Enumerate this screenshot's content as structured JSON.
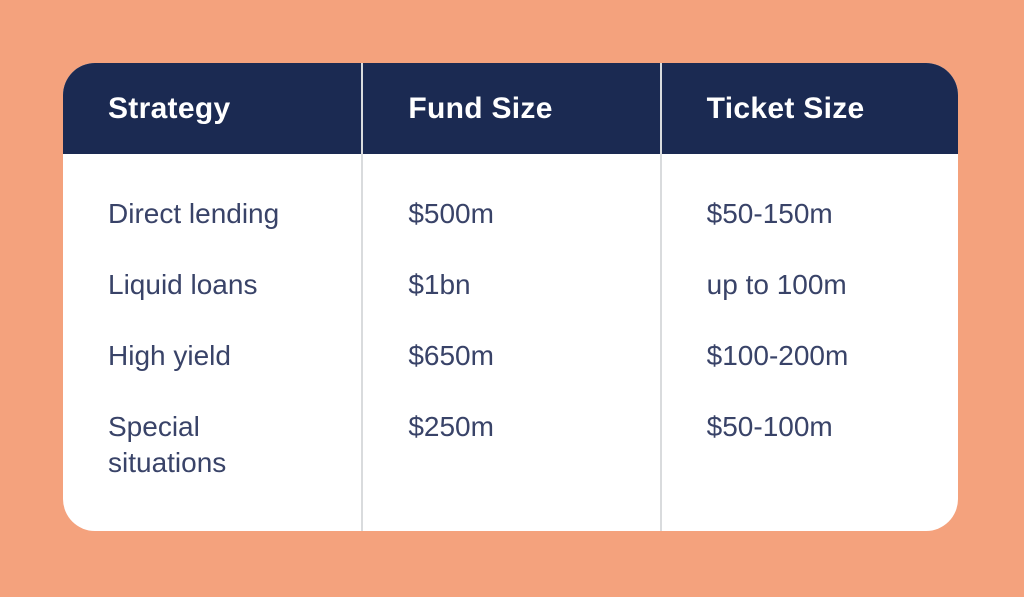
{
  "chart_data": {
    "type": "table",
    "columns": [
      "Strategy",
      "Fund Size",
      "Ticket Size"
    ],
    "rows": [
      [
        "Direct lending",
        "$500m",
        "$50-150m"
      ],
      [
        "Liquid loans",
        "$1bn",
        "up to 100m"
      ],
      [
        "High yield",
        "$650m",
        "$100-200m"
      ],
      [
        "Special situations",
        "$250m",
        "$50-100m"
      ]
    ]
  },
  "colors": {
    "page_background": "#F4A27D",
    "header_background": "#1B2A52",
    "header_text": "#FFFFFF",
    "body_background": "#FFFFFF",
    "body_text": "#394368",
    "divider": "#D9DBDD"
  }
}
